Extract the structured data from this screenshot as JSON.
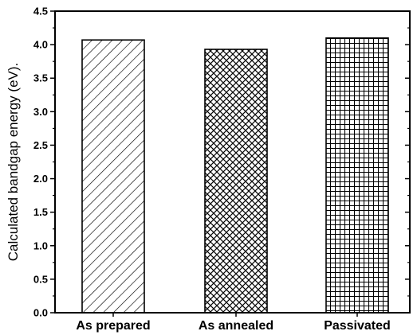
{
  "chart_data": {
    "type": "bar",
    "categories": [
      "As prepared",
      "As annealed",
      "Passivated"
    ],
    "values": [
      4.07,
      3.93,
      4.1
    ],
    "patterns": [
      "diagonal-hatch",
      "cross-hatch",
      "grid-hatch"
    ],
    "title": "",
    "xlabel": "",
    "ylabel": "Calculated bandgap energy (eV).",
    "ylim": [
      0,
      4.5
    ],
    "yticks": [
      "0.0",
      "0.5",
      "1.0",
      "1.5",
      "2.0",
      "2.5",
      "3.0",
      "3.5",
      "4.0",
      "4.5"
    ],
    "grid": false,
    "legend": "none"
  },
  "colors": {
    "bar_stroke": "#000000",
    "hatch": "#000000",
    "background": "#ffffff"
  }
}
